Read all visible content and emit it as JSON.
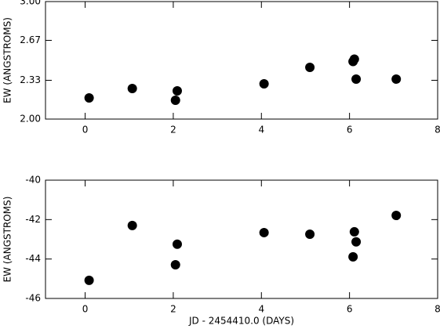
{
  "chart_data": [
    {
      "type": "scatter",
      "ylabel": "EW (ANGSTROMS)",
      "x": [
        0.09,
        1.07,
        2.05,
        2.09,
        4.06,
        5.1,
        6.08,
        6.11,
        6.15,
        7.06
      ],
      "values": [
        2.18,
        2.26,
        2.16,
        2.24,
        2.3,
        2.44,
        2.49,
        2.51,
        2.34,
        2.34
      ],
      "color": "#000000",
      "xlim": [
        -0.9,
        8
      ],
      "xticks": [
        0,
        2,
        4,
        6,
        8
      ],
      "ylim": [
        2,
        3
      ],
      "yticks": [
        {
          "value": 2,
          "label": "2.00"
        },
        {
          "value": 2.33,
          "label": "2.33"
        },
        {
          "value": 2.67,
          "label": "2.67"
        },
        {
          "value": 3,
          "label": "3.00"
        }
      ]
    },
    {
      "type": "scatter",
      "ylabel": "EW (ANGSTROMS)",
      "xlabel": "JD - 2454410.0 (DAYS)",
      "x": [
        0.09,
        1.07,
        2.05,
        2.09,
        4.06,
        5.1,
        6.08,
        6.11,
        6.15,
        7.06
      ],
      "values": [
        -45.08,
        -42.3,
        -44.29,
        -43.25,
        -42.66,
        -42.74,
        -43.89,
        -42.62,
        -43.13,
        -41.79
      ],
      "color": "#000000",
      "xlim": [
        -0.9,
        8
      ],
      "xticks": [
        0,
        2,
        4,
        6,
        8
      ],
      "ylim": [
        -46,
        -40
      ],
      "yticks": [
        -46,
        -44,
        -42,
        -40
      ]
    }
  ]
}
